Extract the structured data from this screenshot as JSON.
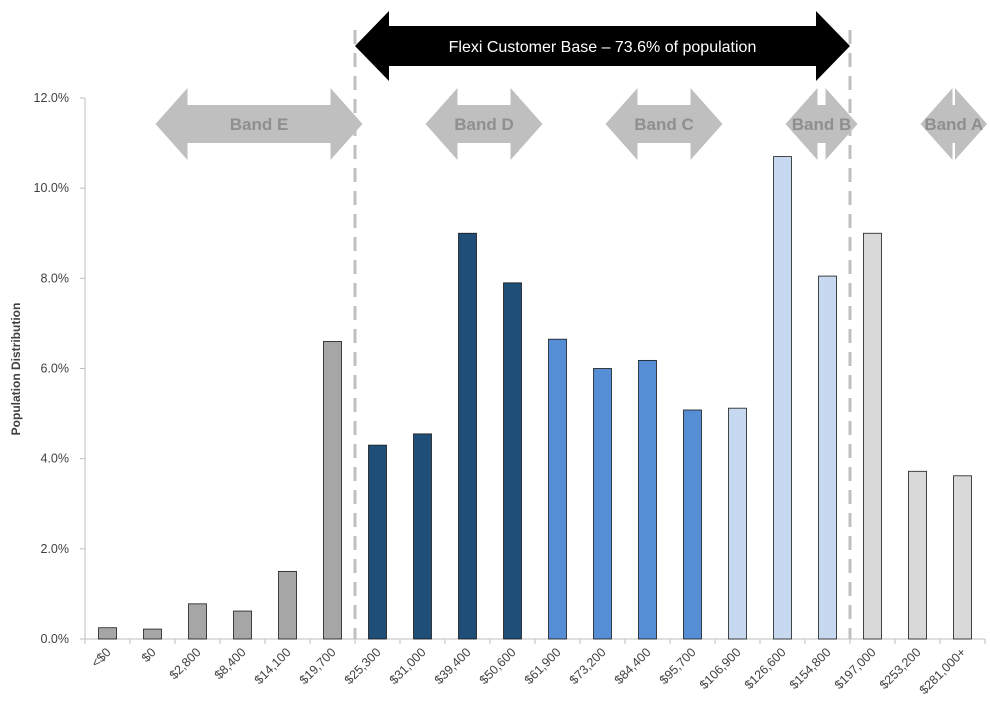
{
  "chart_data": {
    "type": "bar",
    "ylabel": "Population Distribution",
    "ylim": [
      0,
      12
    ],
    "y_ticks": [
      "0.0%",
      "2.0%",
      "4.0%",
      "6.0%",
      "8.0%",
      "10.0%",
      "12.0%"
    ],
    "grid": false,
    "categories": [
      "<$0",
      "$0",
      "$2,800",
      "$8,400",
      "$14,100",
      "$19,700",
      "$25,300",
      "$31,000",
      "$39,400",
      "$50,600",
      "$61,900",
      "$73,200",
      "$84,400",
      "$95,700",
      "$106,900",
      "$126,600",
      "$154,800",
      "$197,000",
      "$253,200",
      "$281,000+"
    ],
    "values": [
      0.25,
      0.22,
      0.78,
      0.62,
      1.5,
      6.6,
      4.3,
      4.55,
      9.0,
      7.9,
      6.65,
      6.0,
      6.18,
      5.08,
      5.12,
      10.7,
      8.05,
      9.0,
      3.72,
      3.62
    ],
    "bar_colors": [
      "#a6a6a6",
      "#a6a6a6",
      "#a6a6a6",
      "#a6a6a6",
      "#a6a6a6",
      "#a6a6a6",
      "#1f4e79",
      "#1f4e79",
      "#1f4e79",
      "#1f4e79",
      "#558ed5",
      "#558ed5",
      "#558ed5",
      "#558ed5",
      "#c6d9f1",
      "#c6d9f1",
      "#c6d9f1",
      "#d9d9d9",
      "#d9d9d9",
      "#d9d9d9"
    ],
    "bands": [
      {
        "label": "Band E",
        "from": 0,
        "to": 5
      },
      {
        "label": "Band D",
        "from": 6,
        "to": 9
      },
      {
        "label": "Band C",
        "from": 10,
        "to": 13
      },
      {
        "label": "Band B",
        "from": 14,
        "to": 16
      },
      {
        "label": "Band A",
        "from": 17,
        "to": 19
      }
    ],
    "banner": {
      "label": "Flexi Customer Base – 73.6% of population",
      "from": 6,
      "to": 16
    }
  },
  "colors": {
    "axis": "#bfbfbf",
    "band_arrow": "#bfbfbf",
    "banner_arrow": "#000000",
    "divider": "#bfbfbf"
  }
}
